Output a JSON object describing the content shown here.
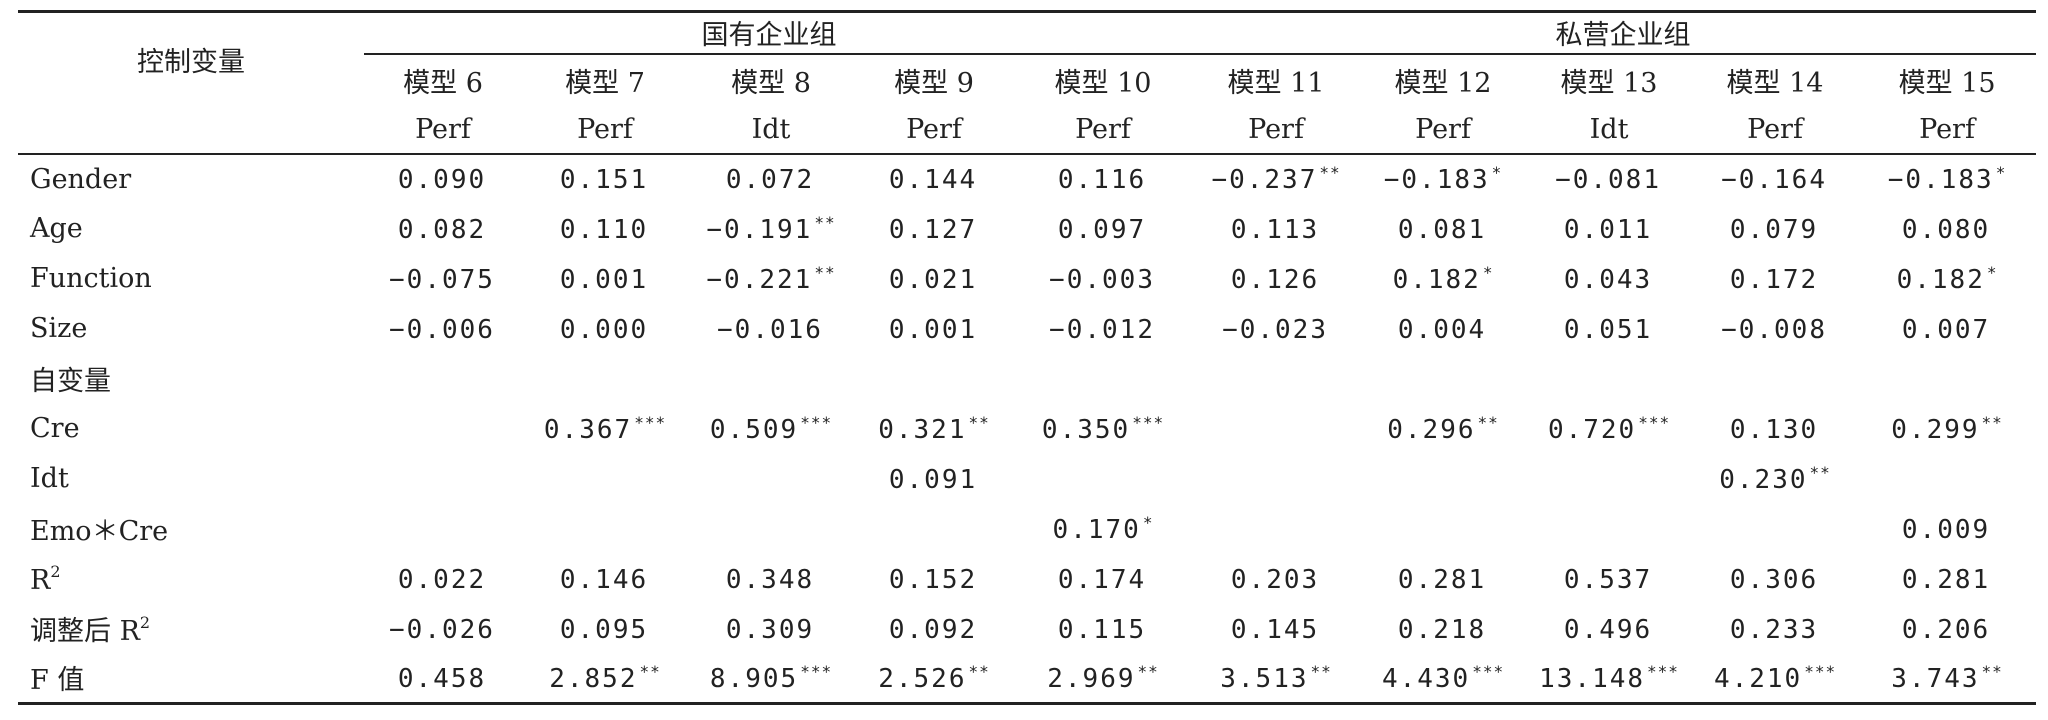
{
  "header": {
    "corner_label": "控制变量",
    "group_soe": "国有企业组",
    "group_private": "私营企业组",
    "models": [
      "模型 6",
      "模型 7",
      "模型 8",
      "模型 9",
      "模型 10",
      "模型 11",
      "模型 12",
      "模型 13",
      "模型 14",
      "模型 15"
    ],
    "dep_vars": [
      "Perf",
      "Perf",
      "Idt",
      "Perf",
      "Perf",
      "Perf",
      "Perf",
      "Idt",
      "Perf",
      "Perf"
    ]
  },
  "rows": [
    {
      "label": "Gender",
      "cells": [
        [
          "0.090",
          ""
        ],
        [
          "0.151",
          ""
        ],
        [
          "0.072",
          ""
        ],
        [
          "0.144",
          ""
        ],
        [
          "0.116",
          ""
        ],
        [
          "−0.237",
          "**"
        ],
        [
          "−0.183",
          "*"
        ],
        [
          "−0.081",
          ""
        ],
        [
          "−0.164",
          ""
        ],
        [
          "−0.183",
          "*"
        ]
      ]
    },
    {
      "label": "Age",
      "cells": [
        [
          "0.082",
          ""
        ],
        [
          "0.110",
          ""
        ],
        [
          "−0.191",
          "**"
        ],
        [
          "0.127",
          ""
        ],
        [
          "0.097",
          ""
        ],
        [
          "0.113",
          ""
        ],
        [
          "0.081",
          ""
        ],
        [
          "0.011",
          ""
        ],
        [
          "0.079",
          ""
        ],
        [
          "0.080",
          ""
        ]
      ]
    },
    {
      "label": "Function",
      "cells": [
        [
          "−0.075",
          ""
        ],
        [
          "0.001",
          ""
        ],
        [
          "−0.221",
          "**"
        ],
        [
          "0.021",
          ""
        ],
        [
          "−0.003",
          ""
        ],
        [
          "0.126",
          ""
        ],
        [
          "0.182",
          "*"
        ],
        [
          "0.043",
          ""
        ],
        [
          "0.172",
          ""
        ],
        [
          "0.182",
          "*"
        ]
      ]
    },
    {
      "label": "Size",
      "cells": [
        [
          "−0.006",
          ""
        ],
        [
          "0.000",
          ""
        ],
        [
          "−0.016",
          ""
        ],
        [
          "0.001",
          ""
        ],
        [
          "−0.012",
          ""
        ],
        [
          "−0.023",
          ""
        ],
        [
          "0.004",
          ""
        ],
        [
          "0.051",
          ""
        ],
        [
          "−0.008",
          ""
        ],
        [
          "0.007",
          ""
        ]
      ]
    },
    {
      "label": "自变量",
      "cells": [
        [
          "",
          ""
        ],
        [
          "",
          ""
        ],
        [
          "",
          ""
        ],
        [
          "",
          ""
        ],
        [
          "",
          ""
        ],
        [
          "",
          ""
        ],
        [
          "",
          ""
        ],
        [
          "",
          ""
        ],
        [
          "",
          ""
        ],
        [
          "",
          ""
        ]
      ]
    },
    {
      "label": "Cre",
      "cells": [
        [
          "",
          ""
        ],
        [
          "0.367",
          "***"
        ],
        [
          "0.509",
          "***"
        ],
        [
          "0.321",
          "**"
        ],
        [
          "0.350",
          "***"
        ],
        [
          "",
          ""
        ],
        [
          "0.296",
          "**"
        ],
        [
          "0.720",
          "***"
        ],
        [
          "0.130",
          ""
        ],
        [
          "0.299",
          "**"
        ]
      ]
    },
    {
      "label": "Idt",
      "cells": [
        [
          "",
          ""
        ],
        [
          "",
          ""
        ],
        [
          "",
          ""
        ],
        [
          "0.091",
          ""
        ],
        [
          "",
          ""
        ],
        [
          "",
          ""
        ],
        [
          "",
          ""
        ],
        [
          "",
          ""
        ],
        [
          "0.230",
          "**"
        ],
        [
          "",
          ""
        ]
      ]
    },
    {
      "label": "Emo＊Cre",
      "cells": [
        [
          "",
          ""
        ],
        [
          "",
          ""
        ],
        [
          "",
          ""
        ],
        [
          "",
          ""
        ],
        [
          "0.170",
          "*"
        ],
        [
          "",
          ""
        ],
        [
          "",
          ""
        ],
        [
          "",
          ""
        ],
        [
          "",
          ""
        ],
        [
          "0.009",
          ""
        ]
      ]
    },
    {
      "label": "R",
      "sup": "2",
      "cells": [
        [
          "0.022",
          ""
        ],
        [
          "0.146",
          ""
        ],
        [
          "0.348",
          ""
        ],
        [
          "0.152",
          ""
        ],
        [
          "0.174",
          ""
        ],
        [
          "0.203",
          ""
        ],
        [
          "0.281",
          ""
        ],
        [
          "0.537",
          ""
        ],
        [
          "0.306",
          ""
        ],
        [
          "0.281",
          ""
        ]
      ]
    },
    {
      "label": "调整后 R",
      "sup": "2",
      "cells": [
        [
          "−0.026",
          ""
        ],
        [
          "0.095",
          ""
        ],
        [
          "0.309",
          ""
        ],
        [
          "0.092",
          ""
        ],
        [
          "0.115",
          ""
        ],
        [
          "0.145",
          ""
        ],
        [
          "0.218",
          ""
        ],
        [
          "0.496",
          ""
        ],
        [
          "0.233",
          ""
        ],
        [
          "0.206",
          ""
        ]
      ]
    },
    {
      "label": "F 值",
      "cells": [
        [
          "0.458",
          ""
        ],
        [
          "2.852",
          "**"
        ],
        [
          "8.905",
          "***"
        ],
        [
          "2.526",
          "**"
        ],
        [
          "2.969",
          "**"
        ],
        [
          "3.513",
          "**"
        ],
        [
          "4.430",
          "***"
        ],
        [
          "13.148",
          "***"
        ],
        [
          "4.210",
          "***"
        ],
        [
          "3.743",
          "**"
        ]
      ]
    }
  ]
}
